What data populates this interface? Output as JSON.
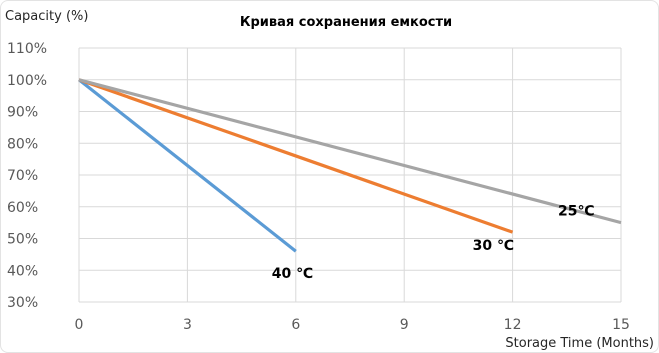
{
  "chart_data": {
    "type": "line",
    "title": "Кривая сохранения емкости",
    "xlabel": "Storage Time (Months)",
    "ylabel": "Capacity (%)",
    "xlim": [
      0,
      15
    ],
    "ylim": [
      30,
      110
    ],
    "x_ticks": [
      0,
      3,
      6,
      9,
      12,
      15
    ],
    "x_tick_labels": [
      "0",
      "3",
      "6",
      "9",
      "12",
      "15"
    ],
    "y_ticks": [
      30,
      40,
      50,
      60,
      70,
      80,
      90,
      100,
      110
    ],
    "y_tick_labels": [
      "30%",
      "40%",
      "50%",
      "60%",
      "70%",
      "80%",
      "90%",
      "100%",
      "110%"
    ],
    "grid": true,
    "legend": "none",
    "series": [
      {
        "label": "40 ℃",
        "color": "#5b9bd5",
        "x": [
          0,
          6
        ],
        "y": [
          100,
          46
        ]
      },
      {
        "label": "30 ℃",
        "color": "#ed7d31",
        "x": [
          0,
          12
        ],
        "y": [
          100,
          52
        ]
      },
      {
        "label": "25℃",
        "color": "#a5a5a5",
        "x": [
          0,
          15
        ],
        "y": [
          100,
          55
        ]
      }
    ]
  }
}
